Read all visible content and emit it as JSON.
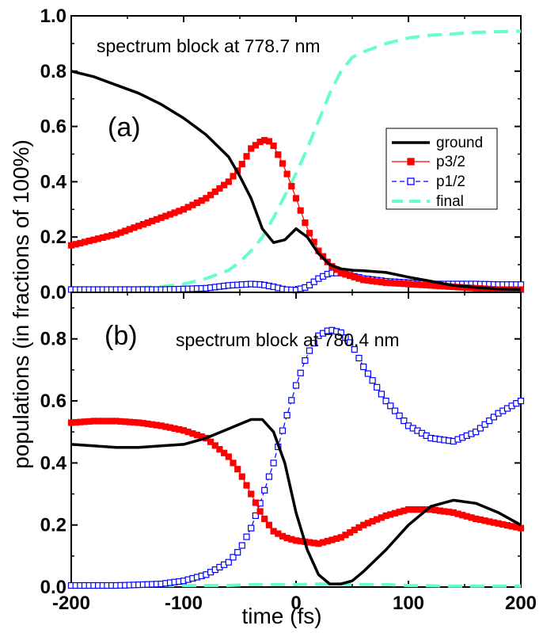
{
  "chart_data": {
    "type": "line",
    "xlabel": "time (fs)",
    "ylabel": "populations (in fractions of 100%)",
    "x_ticks": [
      "-200",
      "-100",
      "0",
      "100",
      "200"
    ],
    "xlim": [
      -200,
      200
    ],
    "legend": {
      "position": "right-center of top panel",
      "entries": [
        "ground",
        "p3/2",
        "p1/2",
        "final"
      ]
    },
    "colors": {
      "ground": "#000000",
      "p3/2": "#ff0000",
      "p1/2": "#0000ff",
      "final": "#66ffcc"
    },
    "panels": [
      {
        "id": "a",
        "panel_label": "(a)",
        "annotation": "spectrum block at 778.7 nm",
        "ylim": [
          0,
          1.0
        ],
        "y_ticks": [
          "0.0",
          "0.2",
          "0.4",
          "0.6",
          "0.8",
          "1.0"
        ],
        "series": [
          {
            "name": "ground",
            "points": [
              [
                -200,
                0.8
              ],
              [
                -180,
                0.78
              ],
              [
                -160,
                0.75
              ],
              [
                -140,
                0.72
              ],
              [
                -120,
                0.68
              ],
              [
                -100,
                0.63
              ],
              [
                -80,
                0.57
              ],
              [
                -60,
                0.49
              ],
              [
                -50,
                0.42
              ],
              [
                -40,
                0.34
              ],
              [
                -30,
                0.23
              ],
              [
                -20,
                0.18
              ],
              [
                -10,
                0.19
              ],
              [
                0,
                0.23
              ],
              [
                10,
                0.2
              ],
              [
                20,
                0.14
              ],
              [
                30,
                0.1
              ],
              [
                40,
                0.085
              ],
              [
                50,
                0.08
              ],
              [
                60,
                0.078
              ],
              [
                80,
                0.072
              ],
              [
                100,
                0.055
              ],
              [
                120,
                0.04
              ],
              [
                140,
                0.025
              ],
              [
                160,
                0.018
              ],
              [
                180,
                0.012
              ],
              [
                200,
                0.01
              ]
            ]
          },
          {
            "name": "p3/2",
            "points": [
              [
                -200,
                0.17
              ],
              [
                -180,
                0.19
              ],
              [
                -160,
                0.21
              ],
              [
                -140,
                0.24
              ],
              [
                -120,
                0.27
              ],
              [
                -100,
                0.3
              ],
              [
                -80,
                0.34
              ],
              [
                -60,
                0.4
              ],
              [
                -50,
                0.45
              ],
              [
                -40,
                0.52
              ],
              [
                -30,
                0.55
              ],
              [
                -25,
                0.55
              ],
              [
                -20,
                0.53
              ],
              [
                -10,
                0.45
              ],
              [
                0,
                0.34
              ],
              [
                10,
                0.23
              ],
              [
                20,
                0.15
              ],
              [
                30,
                0.1
              ],
              [
                40,
                0.07
              ],
              [
                60,
                0.045
              ],
              [
                80,
                0.035
              ],
              [
                100,
                0.03
              ],
              [
                120,
                0.025
              ],
              [
                140,
                0.02
              ],
              [
                160,
                0.015
              ],
              [
                180,
                0.01
              ],
              [
                200,
                0.01
              ]
            ]
          },
          {
            "name": "p1/2",
            "points": [
              [
                -200,
                0.01
              ],
              [
                -160,
                0.01
              ],
              [
                -120,
                0.01
              ],
              [
                -100,
                0.012
              ],
              [
                -80,
                0.015
              ],
              [
                -60,
                0.025
              ],
              [
                -40,
                0.03
              ],
              [
                -30,
                0.028
              ],
              [
                -20,
                0.02
              ],
              [
                -10,
                0.01
              ],
              [
                0,
                0.008
              ],
              [
                10,
                0.02
              ],
              [
                20,
                0.05
              ],
              [
                30,
                0.07
              ],
              [
                40,
                0.07
              ],
              [
                50,
                0.06
              ],
              [
                60,
                0.05
              ],
              [
                80,
                0.04
              ],
              [
                100,
                0.035
              ],
              [
                120,
                0.03
              ],
              [
                140,
                0.03
              ],
              [
                160,
                0.03
              ],
              [
                180,
                0.028
              ],
              [
                200,
                0.028
              ]
            ]
          },
          {
            "name": "final",
            "points": [
              [
                -200,
                0.01
              ],
              [
                -160,
                0.015
              ],
              [
                -120,
                0.02
              ],
              [
                -100,
                0.03
              ],
              [
                -80,
                0.05
              ],
              [
                -60,
                0.08
              ],
              [
                -50,
                0.11
              ],
              [
                -40,
                0.15
              ],
              [
                -30,
                0.2
              ],
              [
                -20,
                0.27
              ],
              [
                -10,
                0.35
              ],
              [
                0,
                0.43
              ],
              [
                10,
                0.52
              ],
              [
                20,
                0.62
              ],
              [
                30,
                0.72
              ],
              [
                40,
                0.8
              ],
              [
                50,
                0.85
              ],
              [
                60,
                0.87
              ],
              [
                80,
                0.9
              ],
              [
                100,
                0.92
              ],
              [
                120,
                0.93
              ],
              [
                140,
                0.935
              ],
              [
                160,
                0.94
              ],
              [
                200,
                0.945
              ]
            ]
          }
        ]
      },
      {
        "id": "b",
        "panel_label": "(b)",
        "annotation": "spectrum block at 780.4 nm",
        "ylim": [
          0,
          1.0
        ],
        "y_ticks": [
          "0.0",
          "0.2",
          "0.4",
          "0.6",
          "0.8"
        ],
        "series": [
          {
            "name": "ground",
            "points": [
              [
                -200,
                0.46
              ],
              [
                -180,
                0.455
              ],
              [
                -160,
                0.45
              ],
              [
                -140,
                0.45
              ],
              [
                -120,
                0.455
              ],
              [
                -100,
                0.46
              ],
              [
                -80,
                0.48
              ],
              [
                -60,
                0.51
              ],
              [
                -40,
                0.54
              ],
              [
                -30,
                0.54
              ],
              [
                -20,
                0.5
              ],
              [
                -10,
                0.4
              ],
              [
                0,
                0.24
              ],
              [
                10,
                0.12
              ],
              [
                20,
                0.04
              ],
              [
                30,
                0.01
              ],
              [
                40,
                0.01
              ],
              [
                50,
                0.02
              ],
              [
                60,
                0.05
              ],
              [
                80,
                0.12
              ],
              [
                100,
                0.2
              ],
              [
                120,
                0.26
              ],
              [
                140,
                0.28
              ],
              [
                160,
                0.27
              ],
              [
                180,
                0.24
              ],
              [
                200,
                0.2
              ]
            ]
          },
          {
            "name": "p3/2",
            "points": [
              [
                -200,
                0.53
              ],
              [
                -180,
                0.535
              ],
              [
                -160,
                0.535
              ],
              [
                -140,
                0.53
              ],
              [
                -120,
                0.52
              ],
              [
                -100,
                0.505
              ],
              [
                -80,
                0.48
              ],
              [
                -60,
                0.42
              ],
              [
                -50,
                0.37
              ],
              [
                -40,
                0.3
              ],
              [
                -30,
                0.23
              ],
              [
                -20,
                0.18
              ],
              [
                -10,
                0.16
              ],
              [
                0,
                0.15
              ],
              [
                20,
                0.14
              ],
              [
                40,
                0.16
              ],
              [
                60,
                0.2
              ],
              [
                80,
                0.23
              ],
              [
                100,
                0.25
              ],
              [
                120,
                0.25
              ],
              [
                140,
                0.24
              ],
              [
                160,
                0.22
              ],
              [
                180,
                0.205
              ],
              [
                200,
                0.19
              ]
            ]
          },
          {
            "name": "p1/2",
            "points": [
              [
                -200,
                0.005
              ],
              [
                -160,
                0.005
              ],
              [
                -120,
                0.01
              ],
              [
                -100,
                0.02
              ],
              [
                -80,
                0.04
              ],
              [
                -60,
                0.08
              ],
              [
                -50,
                0.12
              ],
              [
                -40,
                0.19
              ],
              [
                -30,
                0.29
              ],
              [
                -20,
                0.4
              ],
              [
                -10,
                0.53
              ],
              [
                0,
                0.65
              ],
              [
                10,
                0.75
              ],
              [
                20,
                0.81
              ],
              [
                30,
                0.83
              ],
              [
                40,
                0.82
              ],
              [
                50,
                0.78
              ],
              [
                60,
                0.71
              ],
              [
                80,
                0.6
              ],
              [
                100,
                0.52
              ],
              [
                120,
                0.48
              ],
              [
                140,
                0.47
              ],
              [
                160,
                0.5
              ],
              [
                180,
                0.56
              ],
              [
                200,
                0.6
              ]
            ]
          },
          {
            "name": "final",
            "points": [
              [
                -200,
                0.005
              ],
              [
                -100,
                0.005
              ],
              [
                -60,
                0.005
              ],
              [
                -40,
                0.008
              ],
              [
                -20,
                0.008
              ],
              [
                0,
                0.008
              ],
              [
                20,
                0.01
              ],
              [
                40,
                0.01
              ],
              [
                60,
                0.008
              ],
              [
                80,
                0.008
              ],
              [
                100,
                0.005
              ],
              [
                140,
                0.003
              ],
              [
                200,
                0.003
              ]
            ]
          }
        ]
      }
    ]
  }
}
